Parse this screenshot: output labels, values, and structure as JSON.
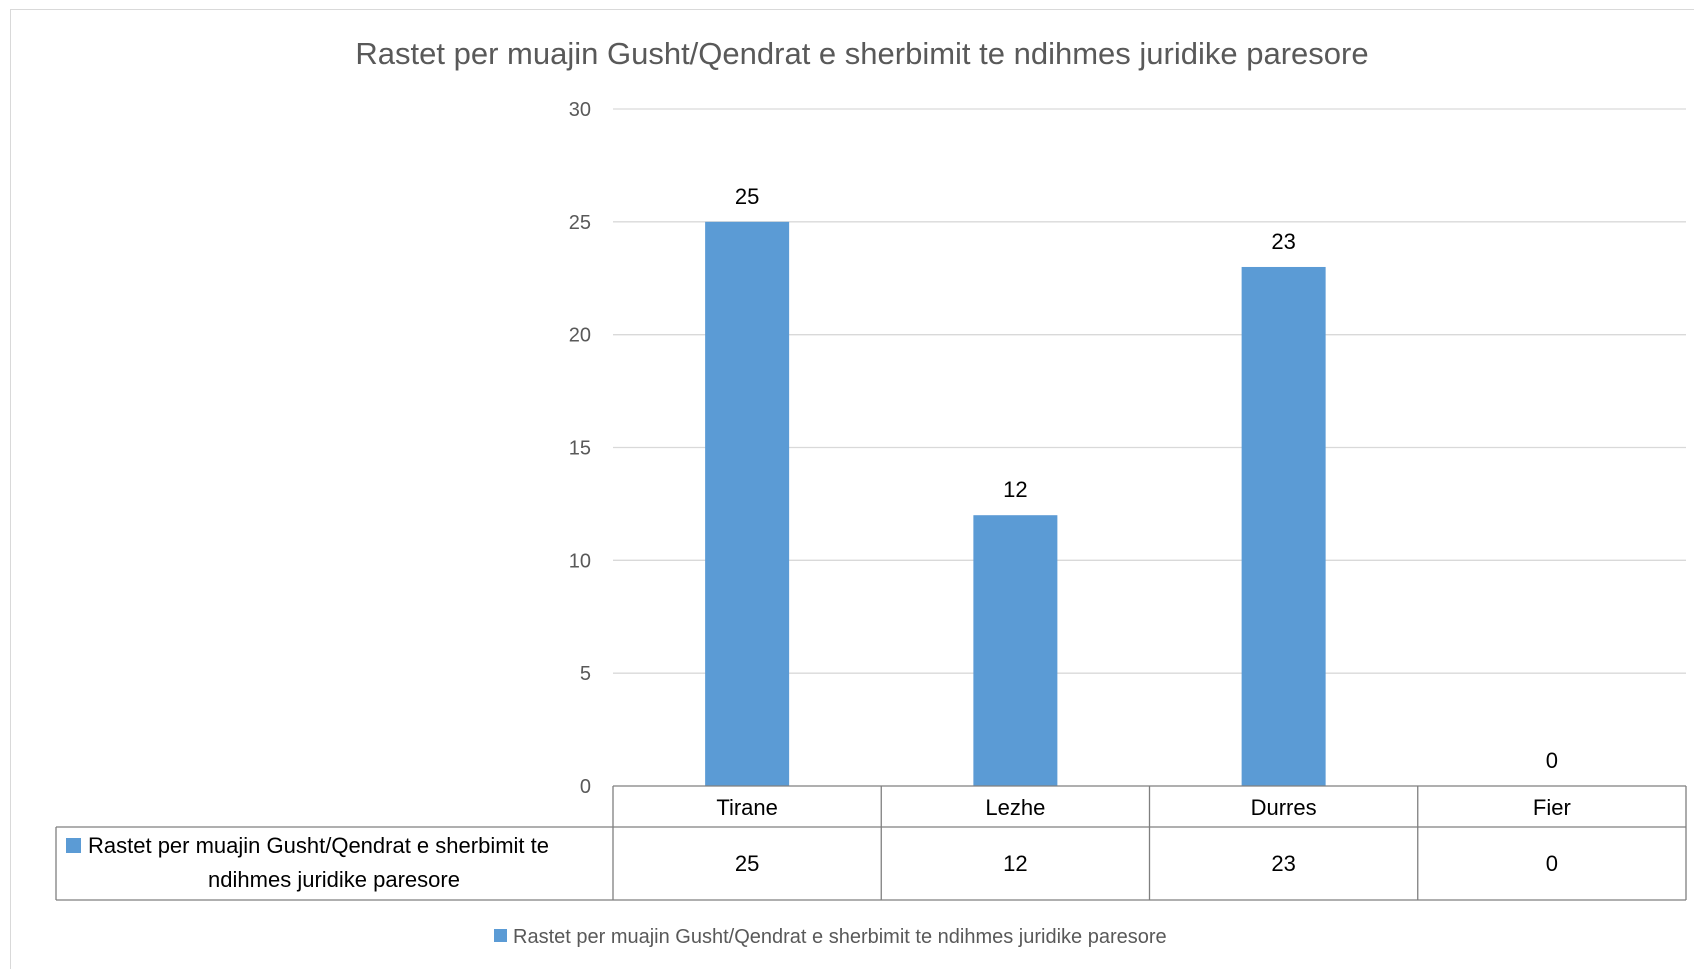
{
  "chart_data": {
    "type": "bar",
    "title": "Rastet per muajin Gusht/Qendrat e sherbimit te ndihmes juridike paresore",
    "categories": [
      "Tirane",
      "Lezhe",
      "Durres",
      "Fier"
    ],
    "series": [
      {
        "name": "Rastet per muajin Gusht/Qendrat e sherbimit te ndihmes juridike paresore",
        "values": [
          25,
          12,
          23,
          0
        ],
        "color": "#5b9bd5"
      }
    ],
    "ylim": [
      0,
      30
    ],
    "yticks": [
      0,
      5,
      10,
      15,
      20,
      25,
      30
    ],
    "grid": true,
    "data_labels": true,
    "data_table": {
      "row_label_line1": "Rastet per muajin Gusht/Qendrat e sherbimit te",
      "row_label_line2": "ndihmes juridike paresore"
    },
    "legend": {
      "position": "bottom"
    }
  }
}
